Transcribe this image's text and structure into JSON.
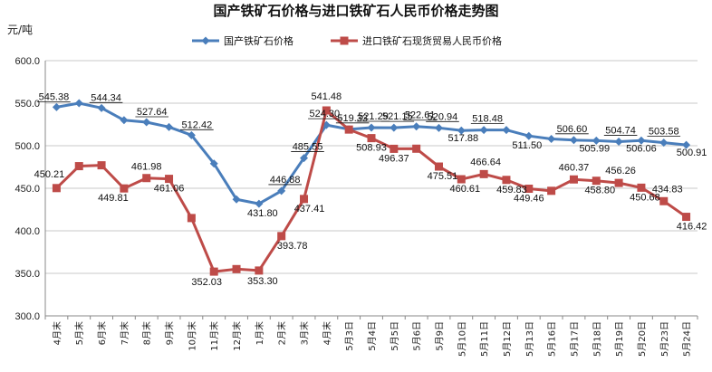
{
  "chart_data": {
    "type": "line",
    "title": "国产铁矿石价格与进口铁矿石人民币价格走势图",
    "ylabel": "元/吨",
    "ylim": [
      300,
      600
    ],
    "yticks": [
      "300.0",
      "350.0",
      "400.0",
      "450.0",
      "500.0",
      "550.0",
      "600.0"
    ],
    "grid": true,
    "legend": "top",
    "categories": [
      "4月末",
      "5月末",
      "6月末",
      "7月末",
      "8月末",
      "9月末",
      "10月末",
      "11月末",
      "12月末",
      "1月末",
      "2月末",
      "3月末",
      "4月末",
      "5月3日",
      "5月4日",
      "5月5日",
      "5月6日",
      "5月9日",
      "5月10日",
      "5月11日",
      "5月12日",
      "5月13日",
      "5月16日",
      "5月17日",
      "5月18日",
      "5月19日",
      "5月20日",
      "5月23日",
      "5月24日"
    ],
    "series": [
      {
        "name": "国产铁矿石价格",
        "color": "#4a7ebb",
        "marker": "diamond",
        "values": [
          545.38,
          550.0,
          544.34,
          530.0,
          527.64,
          522.0,
          512.42,
          479.0,
          437.0,
          431.8,
          446.88,
          485.55,
          524.3,
          519.33,
          521.29,
          521.15,
          522.61,
          520.94,
          517.88,
          518.48,
          518.5,
          511.5,
          508.0,
          506.6,
          505.99,
          504.74,
          506.06,
          503.58,
          500.91
        ],
        "labels": [
          "545.38",
          "",
          "544.34",
          "",
          "527.64",
          "",
          "512.42",
          "",
          "",
          "431.80",
          "446.88",
          "485.55",
          "524.30",
          "519.33",
          "521.29",
          "521.15",
          "522.61",
          "520.94",
          "517.88",
          "518.48",
          "",
          "511.50",
          "",
          "506.60",
          "505.99",
          "504.74",
          "506.06",
          "503.58",
          "500.91"
        ]
      },
      {
        "name": "进口铁矿石现货贸易人民币价格",
        "color": "#be4b48",
        "marker": "square",
        "values": [
          450.21,
          476.0,
          477.0,
          449.81,
          461.98,
          461.06,
          415.0,
          352.03,
          355.0,
          353.3,
          393.78,
          437.41,
          541.48,
          519.0,
          508.93,
          496.37,
          496.5,
          475.51,
          460.61,
          466.64,
          459.83,
          449.46,
          447.0,
          460.37,
          458.8,
          456.26,
          450.68,
          434.83,
          416.42
        ],
        "labels": [
          "450.21",
          "",
          "",
          "449.81",
          "461.98",
          "461.06",
          "",
          "352.03",
          "",
          "353.30",
          "393.78",
          "437.41",
          "541.48",
          "",
          "508.93",
          "496.37",
          "",
          "475.51",
          "460.61",
          "466.64",
          "459.83",
          "449.46",
          "",
          "460.37",
          "458.80",
          "456.26",
          "450.68",
          "434.83",
          "416.42"
        ]
      }
    ]
  }
}
